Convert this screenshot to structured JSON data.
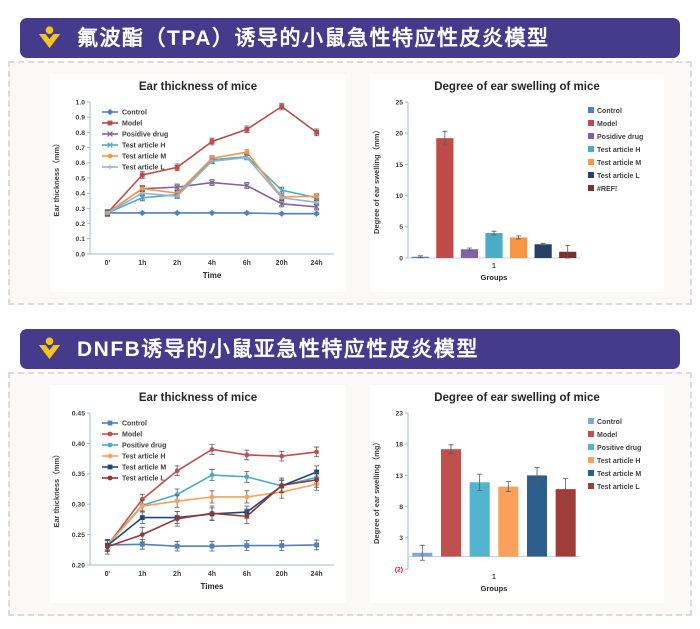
{
  "theme": {
    "banner_bg": "#463A8C",
    "banner_text": "#FFFFFF",
    "logo_color": "#F2C41D",
    "panel_border": "#DEDADA",
    "panel_bg": "#FAF9F8",
    "card_bg": "#FFFFFF",
    "axis_color": "#A6B9D0",
    "category_axis_color": "#C9CFD6",
    "tick_text": "#3F3F3F",
    "negative_tick_text": "#FF0000",
    "error_bar_color": "#595959",
    "title_text": "#262626"
  },
  "sections": [
    {
      "banner": {
        "title": "氟波酯（TPA）诱导的小鼠急性特应性皮炎模型"
      },
      "chart_refs": [
        0,
        1
      ]
    },
    {
      "banner": {
        "title": "DNFB诱导的小鼠亚急性特应性皮炎模型"
      },
      "chart_refs": [
        2,
        3
      ]
    }
  ],
  "chart_data": [
    {
      "type": "line",
      "title": "Ear thickness of mice",
      "xlabel": "Time",
      "ylabel": "Ear thickness（mm）",
      "categories": [
        "0'",
        "1h",
        "2h",
        "4h",
        "6h",
        "20h",
        "24h"
      ],
      "ylim": [
        0.0,
        1.0
      ],
      "ytick_step": 0.1,
      "ytick_labels": [
        "0.0",
        "0.1",
        "0.2",
        "0.3",
        "0.4",
        "0.5",
        "0.6",
        "0.7",
        "0.8",
        "0.9",
        "1.0"
      ],
      "grid": false,
      "legend_pos": "inset-top-left",
      "series": [
        {
          "name": "Control",
          "color": "#4F81BD",
          "marker": "diamond",
          "yerr": 0.006,
          "values": [
            0.27,
            0.27,
            0.27,
            0.27,
            0.27,
            0.265,
            0.265
          ]
        },
        {
          "name": "Model",
          "color": "#BE4B48",
          "marker": "square",
          "yerr": 0.022,
          "values": [
            0.27,
            0.52,
            0.57,
            0.74,
            0.82,
            0.97,
            0.8
          ]
        },
        {
          "name": "Posidive drug",
          "color": "#8064A2",
          "marker": "x",
          "yerr": 0.02,
          "values": [
            0.27,
            0.43,
            0.44,
            0.47,
            0.45,
            0.33,
            0.31
          ]
        },
        {
          "name": "Test article H",
          "color": "#4BACC6",
          "marker": "x",
          "yerr": 0.02,
          "values": [
            0.27,
            0.37,
            0.39,
            0.62,
            0.64,
            0.42,
            0.37
          ]
        },
        {
          "name": "Test article M",
          "color": "#F79646",
          "marker": "circle",
          "yerr": 0.015,
          "values": [
            0.27,
            0.43,
            0.4,
            0.63,
            0.67,
            0.375,
            0.38
          ]
        },
        {
          "name": "Test article L",
          "color": "#95B3D7",
          "marker": "plus",
          "yerr": 0.015,
          "values": [
            0.27,
            0.4,
            0.38,
            0.61,
            0.635,
            0.37,
            0.34
          ]
        }
      ]
    },
    {
      "type": "bar",
      "title": "Degree of ear swelling of mice",
      "xlabel": "Groups",
      "ylabel": "Degree of ear swelling（mm）",
      "categories": [
        "1"
      ],
      "ylim": [
        0,
        25
      ],
      "ytick_step": 5,
      "ytick_labels": [
        "0",
        "5",
        "10",
        "15",
        "20",
        "25"
      ],
      "grid": false,
      "legend_pos": "right",
      "series": [
        {
          "name": "Control",
          "color": "#4F81BD",
          "value": 0.2,
          "yerr": 0.15
        },
        {
          "name": "Model",
          "color": "#BE4B48",
          "value": 19.2,
          "yerr": 1.1
        },
        {
          "name": "Posidive drug",
          "color": "#8064A2",
          "value": 1.4,
          "yerr": 0.2
        },
        {
          "name": "Test article H",
          "color": "#4BACC6",
          "value": 4.0,
          "yerr": 0.3
        },
        {
          "name": "Test article M",
          "color": "#F79646",
          "value": 3.3,
          "yerr": 0.25
        },
        {
          "name": "Test article L",
          "color": "#254061",
          "value": 2.2,
          "yerr": 0.15
        },
        {
          "name": "#REF!",
          "color": "#7E2F2B",
          "value": 1.0,
          "yerr": 1.0
        }
      ]
    },
    {
      "type": "line",
      "title": "Ear thickness of mice",
      "xlabel": "Times",
      "ylabel": "Ear thickness（mm）",
      "categories": [
        "0'",
        "1h",
        "2h",
        "4h",
        "6h",
        "20h",
        "24h"
      ],
      "ylim": [
        0.2,
        0.45
      ],
      "ytick_step": 0.05,
      "ytick_labels": [
        "0.20",
        "0.25",
        "0.30",
        "0.35",
        "0.40",
        "0.45"
      ],
      "grid": false,
      "legend_pos": "inset-top-left",
      "series": [
        {
          "name": "Control",
          "color": "#4F81BD",
          "marker": "square",
          "yerr": 0.008,
          "values": [
            0.233,
            0.234,
            0.231,
            0.231,
            0.232,
            0.232,
            0.233
          ]
        },
        {
          "name": "Model",
          "color": "#C0504D",
          "marker": "circle",
          "yerr": 0.008,
          "values": [
            0.232,
            0.308,
            0.355,
            0.39,
            0.381,
            0.379,
            0.386
          ]
        },
        {
          "name": "Positive drug",
          "color": "#4BACC6",
          "marker": "circle",
          "yerr": 0.009,
          "values": [
            0.233,
            0.298,
            0.316,
            0.348,
            0.345,
            0.33,
            0.344
          ]
        },
        {
          "name": "Test article H",
          "color": "#F9A05A",
          "marker": "circle",
          "yerr": 0.01,
          "values": [
            0.232,
            0.297,
            0.305,
            0.312,
            0.312,
            0.32,
            0.333
          ]
        },
        {
          "name": "Test article M",
          "color": "#1F497D",
          "marker": "square",
          "yerr": 0.01,
          "values": [
            0.232,
            0.278,
            0.278,
            0.284,
            0.287,
            0.33,
            0.353
          ]
        },
        {
          "name": "Test article L",
          "color": "#943634",
          "marker": "circle",
          "yerr": 0.012,
          "values": [
            0.23,
            0.25,
            0.276,
            0.285,
            0.28,
            0.331,
            0.34
          ]
        }
      ]
    },
    {
      "type": "bar",
      "title": "Degree of ear swelling of mice",
      "xlabel": "Groups",
      "ylabel": "Degree of ear swelling（mg）",
      "categories": [
        "1"
      ],
      "ylim": [
        -2,
        23
      ],
      "ytick_step": 5,
      "ytick_labels": [
        "(2)",
        "3",
        "8",
        "13",
        "18",
        "23"
      ],
      "grid": false,
      "legend_pos": "right",
      "series": [
        {
          "name": "Control",
          "color": "#7DA7D8",
          "value": 0.6,
          "yerr": 1.2
        },
        {
          "name": "Model",
          "color": "#C0504D",
          "value": 17.2,
          "yerr": 0.7
        },
        {
          "name": "Positive drug",
          "color": "#52B4CE",
          "value": 11.9,
          "yerr": 1.3
        },
        {
          "name": "Test article H",
          "color": "#F9A05A",
          "value": 11.2,
          "yerr": 0.8
        },
        {
          "name": "Test article M",
          "color": "#2E5F8C",
          "value": 13.0,
          "yerr": 1.3
        },
        {
          "name": "Test article L",
          "color": "#9E3D3A",
          "value": 10.8,
          "yerr": 1.7
        }
      ]
    }
  ]
}
